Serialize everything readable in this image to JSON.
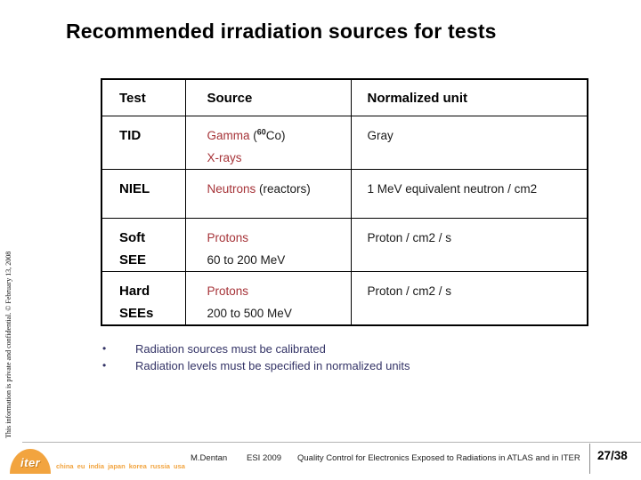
{
  "slide": {
    "title": "Recommended irradiation sources for tests",
    "background_color": "#FFFFFF"
  },
  "colors": {
    "source_accent_red": "#A63338",
    "bullet_navy": "#333366",
    "iter_orange": "#F2A43F",
    "table_border": "#000000"
  },
  "table": {
    "headers": [
      "Test",
      "Source",
      "Normalized unit"
    ],
    "rows": [
      {
        "test_line1": "TID",
        "test_line2": "",
        "src_red": "Gamma",
        "src_black_pre": " (",
        "src_sup": "60",
        "src_black_post": "Co)",
        "src_line2": "X-rays",
        "unit": "Gray"
      },
      {
        "test_line1": "NIEL",
        "test_line2": "",
        "src_red": "Neutrons",
        "src_black_pre": " (reactors)",
        "src_sup": "",
        "src_black_post": "",
        "src_line2": "",
        "unit": "1 MeV equivalent neutron / cm2"
      },
      {
        "test_line1": "Soft",
        "test_line2": "SEE",
        "src_red": "Protons",
        "src_black_pre": "",
        "src_sup": "",
        "src_black_post": "",
        "src_line2": "60 to 200 MeV",
        "unit": "Proton / cm2 / s"
      },
      {
        "test_line1": "Hard",
        "test_line2": "SEEs",
        "src_red": "Protons",
        "src_black_pre": "",
        "src_sup": "",
        "src_black_post": "",
        "src_line2": "200 to 500 MeV",
        "unit": "Proton / cm2 / s"
      }
    ]
  },
  "bullets": [
    "Radiation sources must be calibrated",
    "Radiation levels must be specified in normalized units"
  ],
  "side_note": "This information is private and confidential.   © February 13, 2008",
  "footer": {
    "author": "M.Dentan",
    "event": "ESI 2009",
    "title": "Quality Control for Electronics Exposed to Radiations in ATLAS and in ITER",
    "page": "27/38"
  },
  "logo": {
    "name": "iter",
    "members": "china eu india japan korea russia usa"
  }
}
